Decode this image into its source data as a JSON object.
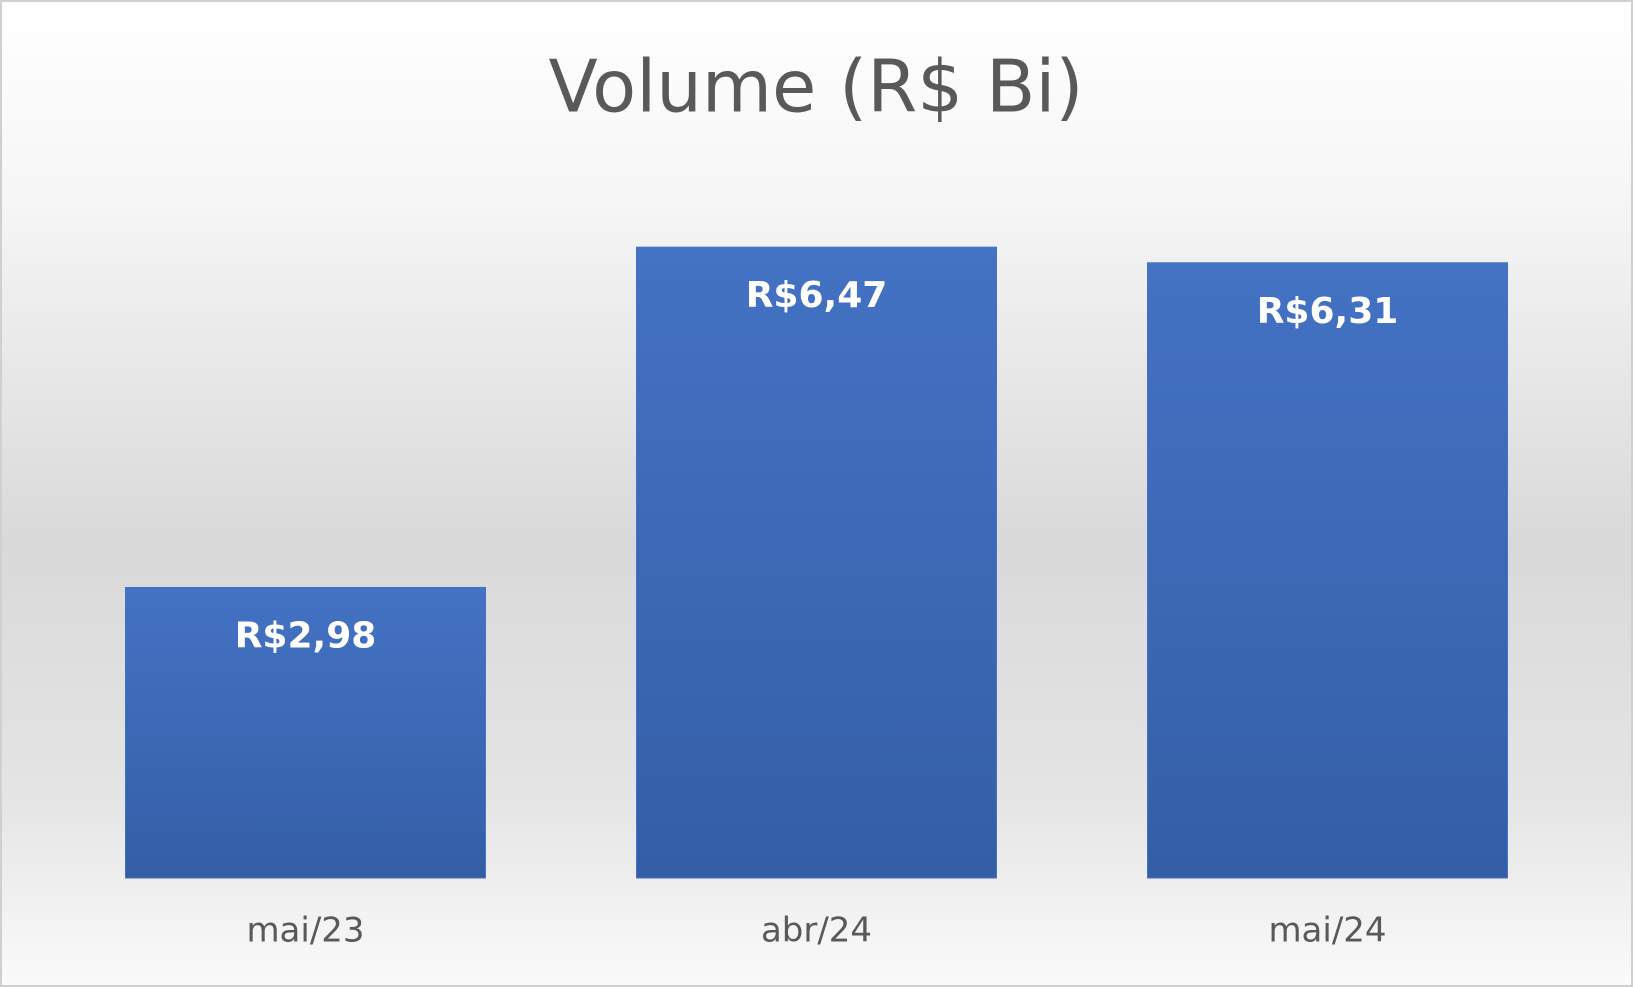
{
  "chart_data": {
    "type": "bar",
    "title": "Volume (R$ Bi)",
    "categories": [
      "mai/23",
      "abr/24",
      "mai/24"
    ],
    "values": [
      2.98,
      6.47,
      6.31
    ],
    "value_labels": [
      "R$2,98",
      "R$6,47",
      "R$6,31"
    ],
    "color": "#4472c4"
  }
}
